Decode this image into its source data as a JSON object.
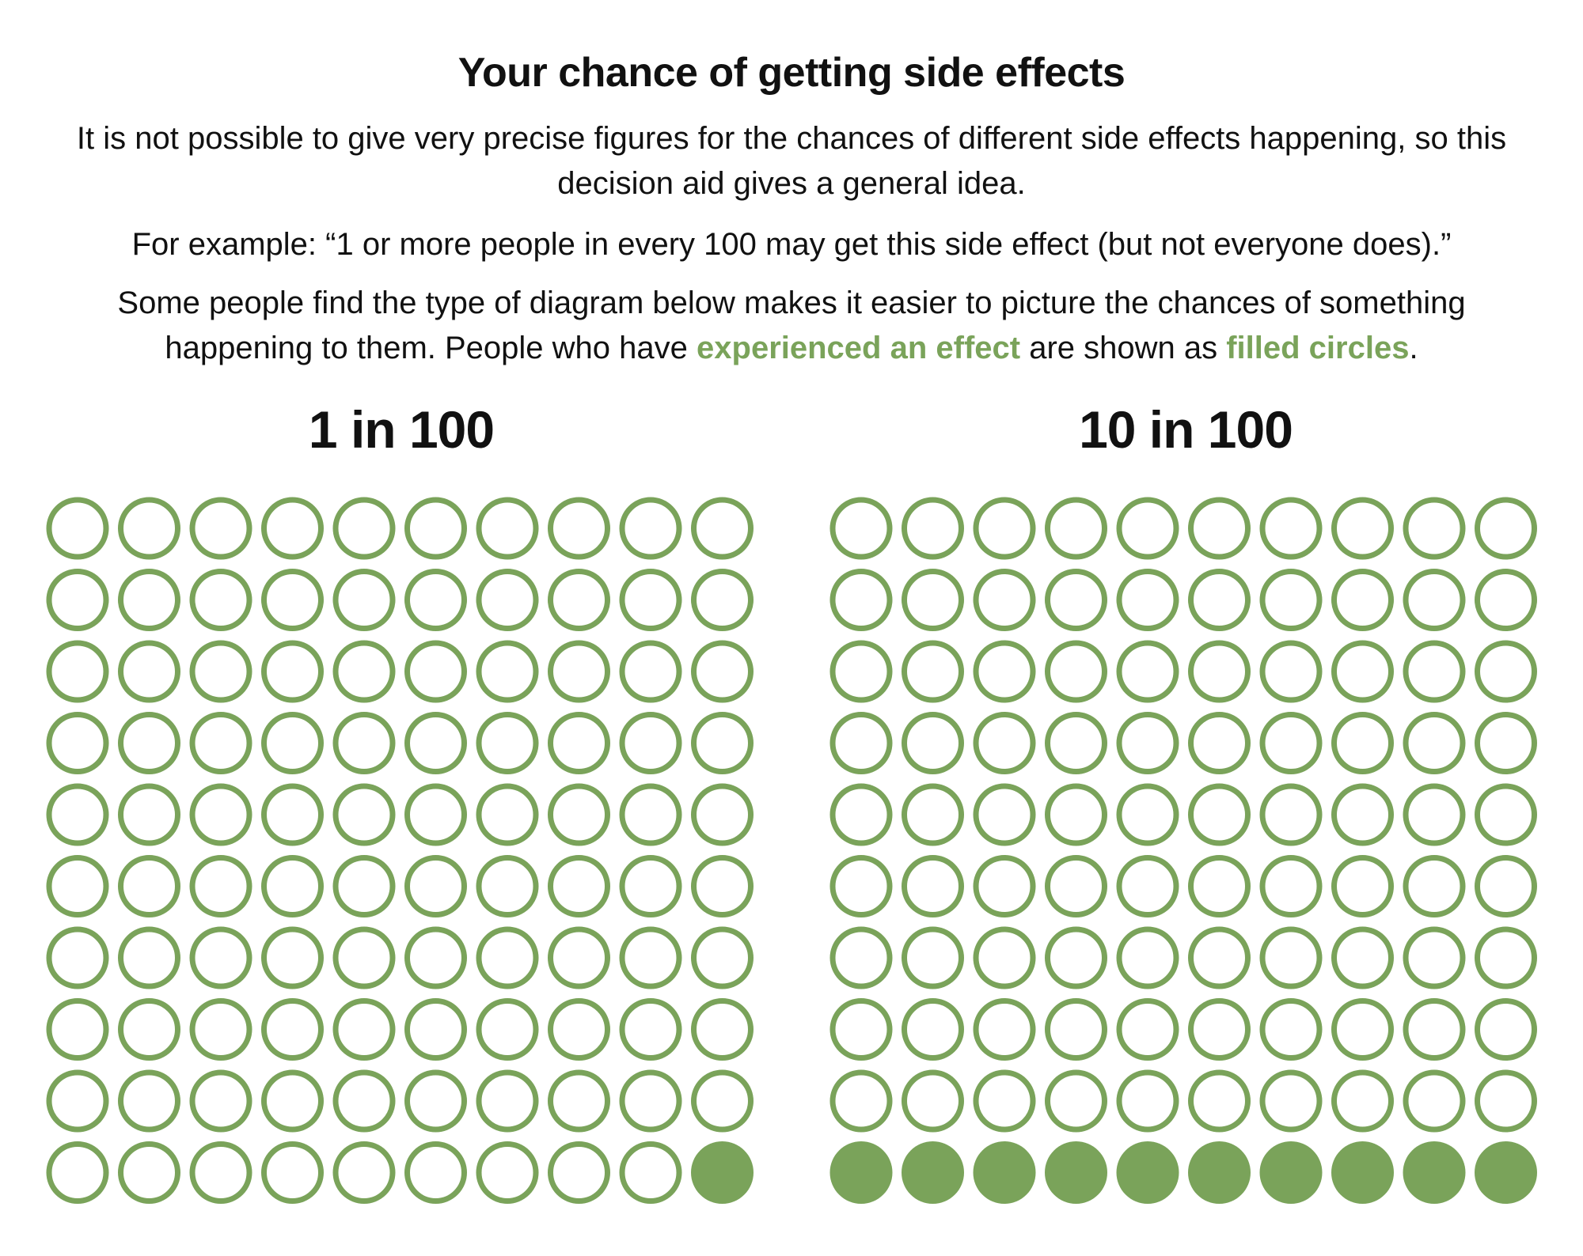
{
  "header": {
    "title": "Your chance of getting side effects"
  },
  "intro": {
    "p1": "It is not possible to give very precise figures for the chances of different side effects happening, so this decision aid gives a general idea.",
    "p2": "For example: “1 or more people in every 100 may get this side effect (but not everyone does).”",
    "p3_start": "Some people find the type of diagram below makes it easier to picture the chances of something happening to them. People who have ",
    "p3_highlight1": "experienced an effect",
    "p3_middle": " are shown as ",
    "p3_highlight2": "filled circles",
    "p3_end": "."
  },
  "colors": {
    "accent": "#7aa35a",
    "text": "#111111",
    "background": "#ffffff"
  },
  "chart_data": [
    {
      "type": "icon-array",
      "title": "1 in 100",
      "total": 100,
      "filled": 1,
      "rows": 10,
      "cols": 10,
      "fill_order": "from bottom-right"
    },
    {
      "type": "icon-array",
      "title": "10 in 100",
      "total": 100,
      "filled": 10,
      "rows": 10,
      "cols": 10,
      "fill_order": "from bottom-right"
    }
  ]
}
